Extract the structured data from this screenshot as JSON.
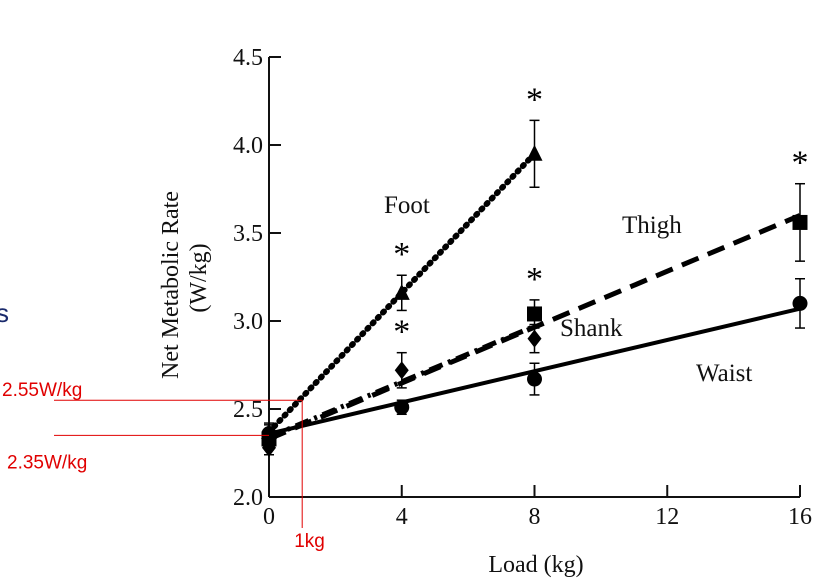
{
  "chart_data": {
    "type": "line",
    "title": "",
    "xlabel": "Load (kg)",
    "ylabel": "Net Metabolic Rate",
    "ylabel_unit": "(W/kg)",
    "xlim": [
      0,
      16
    ],
    "ylim": [
      2.0,
      4.5
    ],
    "xticks": [
      "0",
      "4",
      "8",
      "12",
      "16"
    ],
    "yticks": [
      "2.0",
      "2.5",
      "3.0",
      "3.5",
      "4.0",
      "4.5"
    ],
    "grid": false,
    "series": [
      {
        "name": "Foot",
        "style": "dotted",
        "marker": "triangle",
        "points": [
          {
            "x": 0,
            "y": 2.37,
            "err": 0.05
          },
          {
            "x": 4,
            "y": 3.16,
            "err": 0.1
          },
          {
            "x": 8,
            "y": 3.95,
            "err": 0.19
          }
        ],
        "fit": [
          [
            0,
            2.37
          ],
          [
            8,
            3.95
          ]
        ],
        "significant": [
          4,
          8
        ]
      },
      {
        "name": "Thigh",
        "style": "dashed",
        "marker": "square",
        "points": [
          {
            "x": 0,
            "y": 2.33,
            "err": 0.05
          },
          {
            "x": 8,
            "y": 3.04,
            "err": 0.08
          },
          {
            "x": 16,
            "y": 3.56,
            "err": 0.22
          }
        ],
        "fit": [
          [
            0,
            2.33
          ],
          [
            16,
            3.6
          ]
        ],
        "significant": [
          8,
          16
        ]
      },
      {
        "name": "Shank",
        "style": "dashdot",
        "marker": "diamond",
        "points": [
          {
            "x": 0,
            "y": 2.28,
            "err": 0.04
          },
          {
            "x": 4,
            "y": 2.72,
            "err": 0.1
          },
          {
            "x": 8,
            "y": 2.9,
            "err": 0.08
          }
        ],
        "fit": [
          [
            0,
            2.34
          ],
          [
            8,
            2.97
          ]
        ],
        "significant": [
          4
        ]
      },
      {
        "name": "Waist",
        "style": "solid",
        "marker": "circle",
        "points": [
          {
            "x": 0,
            "y": 2.36,
            "err": 0.05
          },
          {
            "x": 4,
            "y": 2.51,
            "err": 0.04
          },
          {
            "x": 8,
            "y": 2.67,
            "err": 0.09
          },
          {
            "x": 16,
            "y": 3.1,
            "err": 0.14
          }
        ],
        "fit": [
          [
            0,
            2.36
          ],
          [
            16,
            3.07
          ]
        ],
        "significant": []
      }
    ],
    "significance_marker": "*",
    "annotations": {
      "hline_high": {
        "label": "2.55W/kg",
        "y": 2.55
      },
      "hline_low": {
        "label": "2.35W/kg",
        "y": 2.35
      },
      "vline": {
        "label": "1kg",
        "x": 1
      },
      "color": "#e00000"
    },
    "partial_text": "s"
  }
}
